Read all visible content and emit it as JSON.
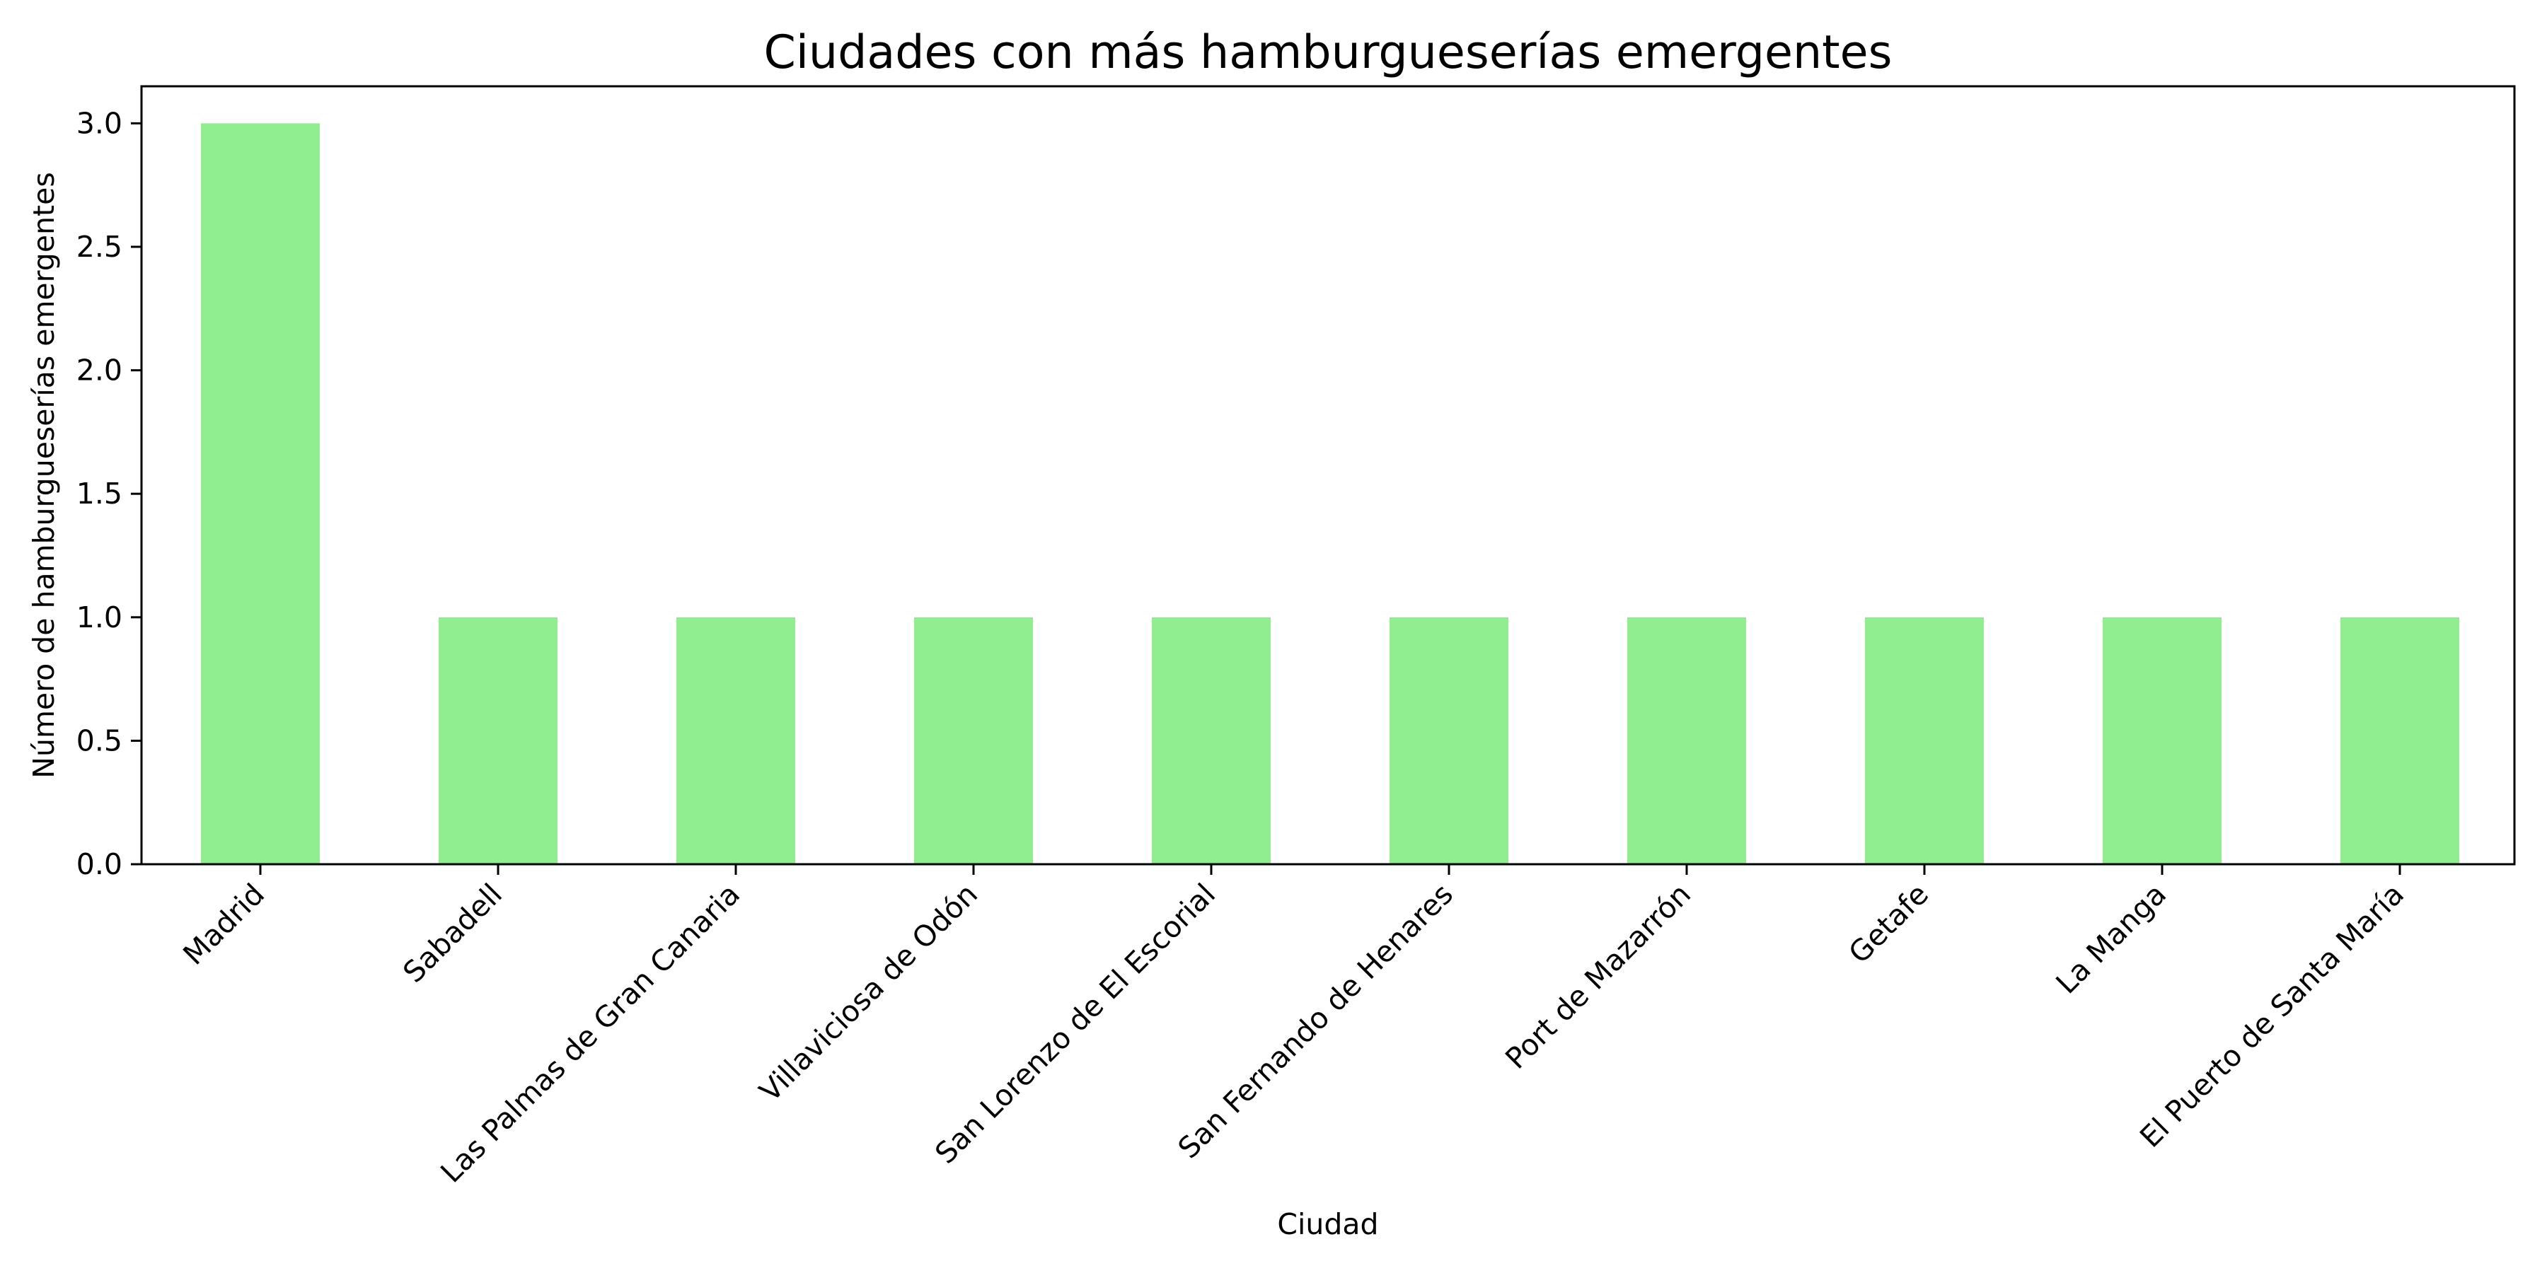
{
  "chart_data": {
    "type": "bar",
    "title": "Ciudades con más hamburgueserías emergentes",
    "xlabel": "Ciudad",
    "ylabel": "Número de hamburgueserías emergentes",
    "categories": [
      "Madrid",
      "Sabadell",
      "Las Palmas de Gran Canaria",
      "Villaviciosa de Odón",
      "San Lorenzo de El Escorial",
      "San Fernando de Henares",
      "Port de Mazarrón",
      "Getafe",
      "La Manga",
      "El Puerto de Santa María"
    ],
    "values": [
      3,
      1,
      1,
      1,
      1,
      1,
      1,
      1,
      1,
      1
    ],
    "ylim": [
      0,
      3.15
    ],
    "yticks": [
      "0.0",
      "0.5",
      "1.0",
      "1.5",
      "2.0",
      "2.5",
      "3.0"
    ],
    "bar_color": "#90ee90",
    "grid": false,
    "legend": "none"
  }
}
